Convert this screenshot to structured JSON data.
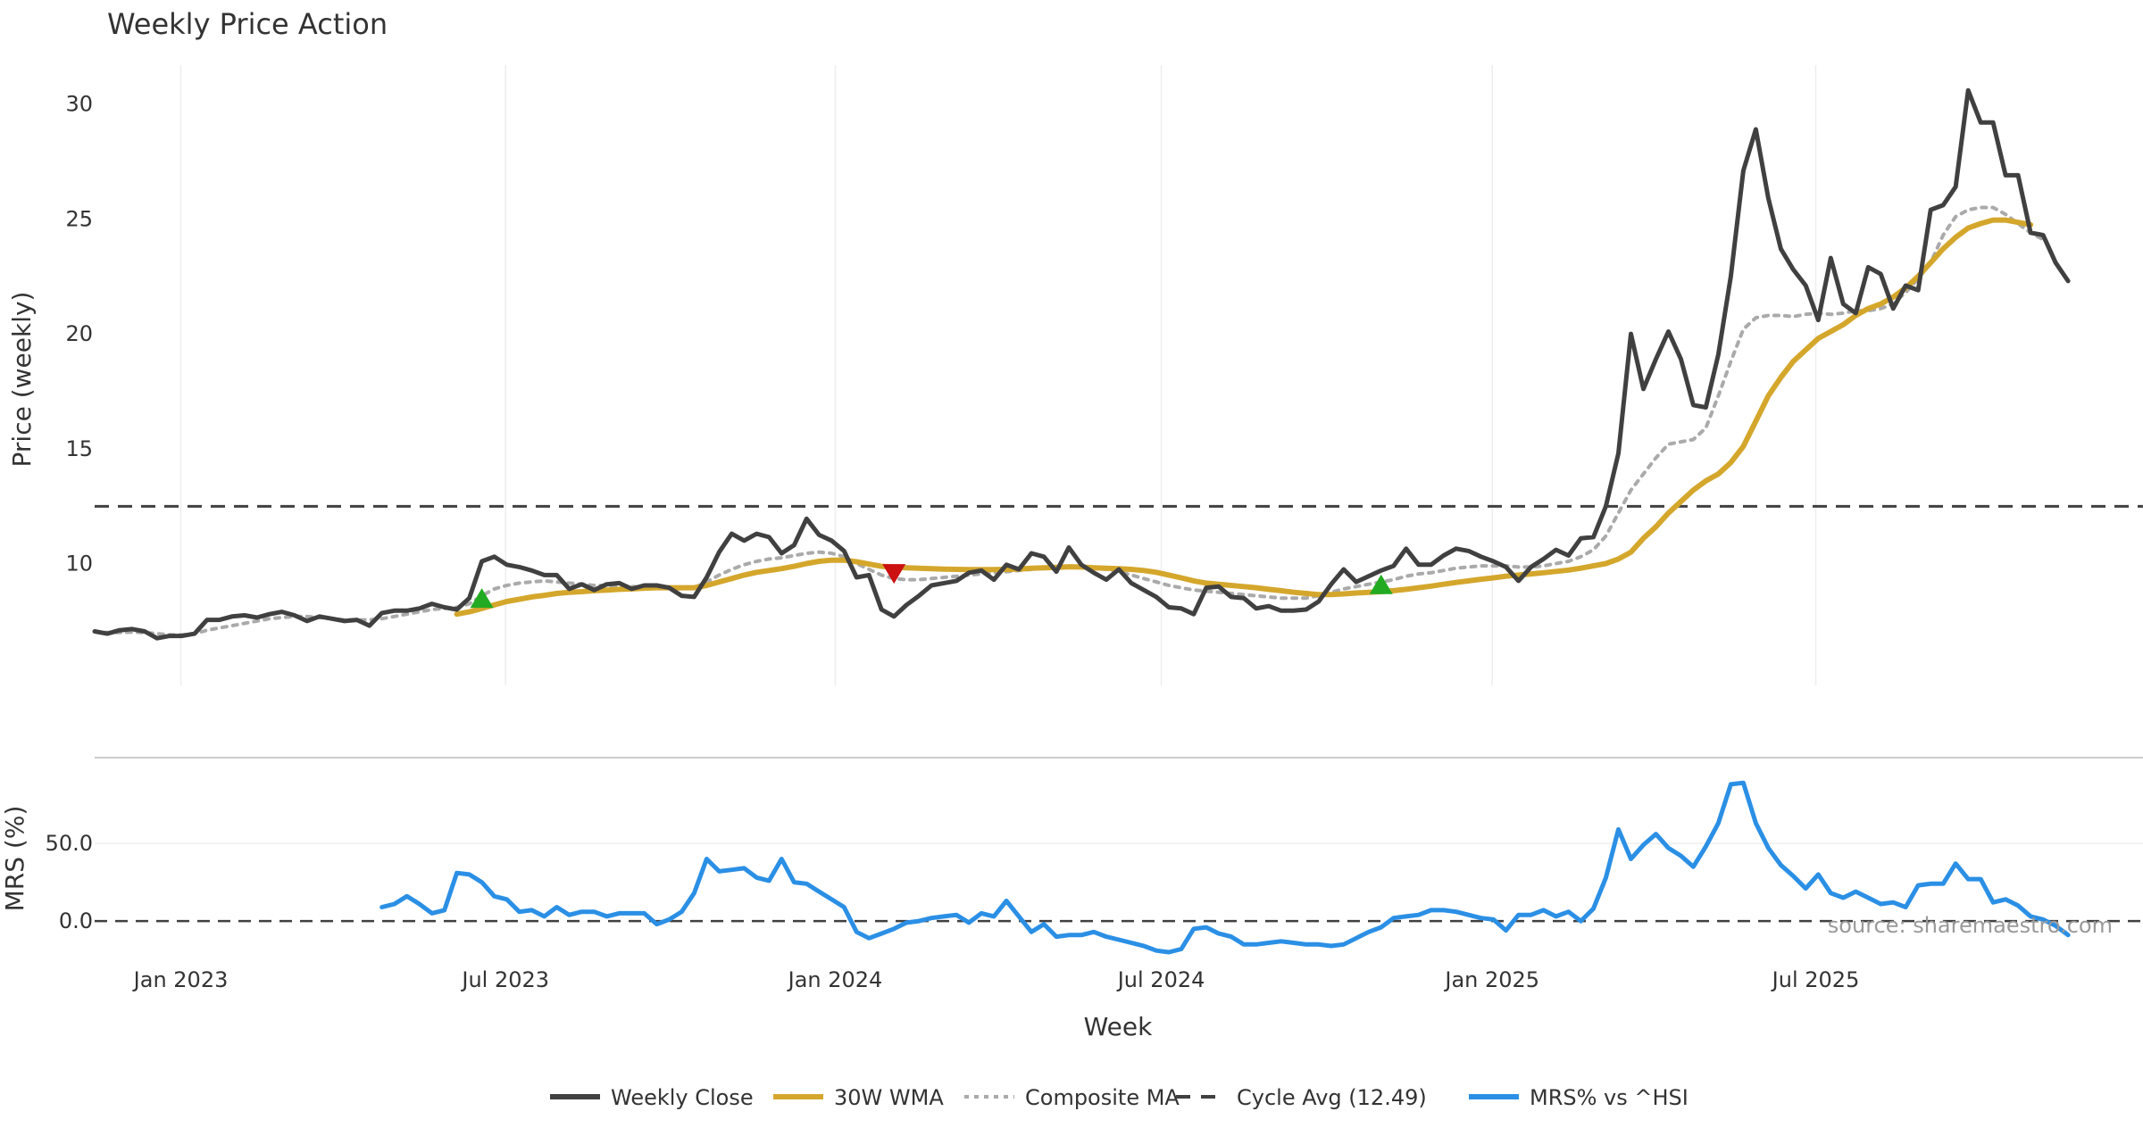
{
  "chart_data": {
    "type": "line",
    "title": "Weekly Price Action",
    "xlabel": "Week",
    "ylabel_price": "Price (weekly)",
    "ylabel_mrs": "MRS (%)",
    "source": "source: sharemaestro.com",
    "x_ticks": [
      "Jan 2023",
      "Jul 2023",
      "Jan 2024",
      "Jul 2024",
      "Jan 2025",
      "Jul 2025"
    ],
    "price_axis": {
      "ylim": [
        4.7,
        31.5
      ],
      "ticks": [
        "10",
        "15",
        "20",
        "25",
        "30"
      ]
    },
    "mrs_axis": {
      "ylim": [
        -16,
        100
      ],
      "ticks": [
        "0.0",
        "50.0"
      ]
    },
    "cycle_average": 12.49,
    "legend": [
      {
        "label": "Weekly Close",
        "color": "#404040",
        "style": "solid"
      },
      {
        "label": "30W WMA",
        "color": "#D4A72C",
        "style": "solid"
      },
      {
        "label": "Composite MA",
        "color": "#AAAAAA",
        "style": "dotted"
      },
      {
        "label": "Cycle Avg (12.49)",
        "color": "#404040",
        "style": "dashed"
      },
      {
        "label": "MRS% vs ^HSI",
        "color": "#2B8FE5",
        "style": "solid"
      }
    ],
    "series": [
      {
        "name": "Weekly Close",
        "color": "#404040",
        "start": 0,
        "values": [
          7.05,
          6.95,
          7.1,
          7.15,
          7.05,
          6.75,
          6.85,
          6.85,
          6.95,
          7.55,
          7.55,
          7.7,
          7.75,
          7.65,
          7.8,
          7.9,
          7.75,
          7.5,
          7.7,
          7.6,
          7.5,
          7.55,
          7.3,
          7.85,
          7.95,
          7.95,
          8.05,
          8.25,
          8.1,
          8.0,
          8.5,
          10.1,
          10.3,
          9.95,
          9.85,
          9.7,
          9.5,
          9.5,
          8.9,
          9.1,
          8.85,
          9.1,
          9.15,
          8.9,
          9.05,
          9.05,
          8.95,
          8.6,
          8.55,
          9.4,
          10.5,
          11.3,
          11.0,
          11.3,
          11.15,
          10.45,
          10.8,
          11.95,
          11.25,
          11.0,
          10.55,
          9.4,
          9.5,
          8.0,
          7.7,
          8.2,
          8.6,
          9.05,
          9.15,
          9.25,
          9.6,
          9.7,
          9.3,
          9.95,
          9.75,
          10.45,
          10.3,
          9.65,
          10.7,
          9.95,
          9.6,
          9.3,
          9.75,
          9.15,
          8.85,
          8.55,
          8.1,
          8.05,
          7.8,
          8.95,
          9.0,
          8.55,
          8.5,
          8.05,
          8.15,
          7.95,
          7.95,
          8.0,
          8.35,
          9.1,
          9.75,
          9.2,
          9.45,
          9.7,
          9.9,
          10.65,
          9.95,
          9.95,
          10.35,
          10.65,
          10.55,
          10.3,
          10.1,
          9.85,
          9.25,
          9.85,
          10.2,
          10.6,
          10.35,
          11.1,
          11.15,
          12.5,
          14.8,
          20.0,
          17.6,
          18.9,
          20.1,
          18.9,
          16.9,
          16.8,
          19.1,
          22.5,
          27.1,
          28.9,
          25.9,
          23.7,
          22.8,
          22.1,
          20.6,
          23.3,
          21.3,
          20.9,
          22.9,
          22.6,
          21.1,
          22.1,
          21.9,
          25.4,
          25.6,
          26.4,
          30.6,
          29.2,
          29.2,
          26.9,
          26.9,
          24.4,
          24.3,
          23.1,
          22.3
        ]
      },
      {
        "name": "30W WMA",
        "color": "#D4A72C",
        "start": 29,
        "values": [
          7.8,
          7.9,
          8.05,
          8.2,
          8.35,
          8.45,
          8.55,
          8.62,
          8.7,
          8.75,
          8.78,
          8.82,
          8.85,
          8.88,
          8.9,
          8.93,
          8.95,
          8.95,
          8.95,
          8.95,
          9.05,
          9.2,
          9.35,
          9.5,
          9.62,
          9.7,
          9.78,
          9.88,
          10.0,
          10.1,
          10.15,
          10.15,
          10.08,
          9.98,
          9.88,
          9.85,
          9.82,
          9.8,
          9.78,
          9.76,
          9.75,
          9.74,
          9.74,
          9.74,
          9.75,
          9.76,
          9.8,
          9.82,
          9.84,
          9.86,
          9.85,
          9.82,
          9.8,
          9.78,
          9.75,
          9.7,
          9.62,
          9.5,
          9.38,
          9.25,
          9.15,
          9.1,
          9.05,
          9.0,
          8.95,
          8.88,
          8.82,
          8.75,
          8.7,
          8.65,
          8.65,
          8.68,
          8.72,
          8.75,
          8.78,
          8.82,
          8.88,
          8.95,
          9.02,
          9.1,
          9.18,
          9.25,
          9.32,
          9.38,
          9.45,
          9.5,
          9.55,
          9.6,
          9.66,
          9.72,
          9.8,
          9.9,
          10.0,
          10.2,
          10.5,
          11.1,
          11.6,
          12.2,
          12.7,
          13.2,
          13.6,
          13.9,
          14.4,
          15.1,
          16.2,
          17.3,
          18.1,
          18.8,
          19.3,
          19.8,
          20.1,
          20.4,
          20.8,
          21.1,
          21.3,
          21.6,
          22.0,
          22.5,
          23.1,
          23.7,
          24.2,
          24.6,
          24.8,
          24.95,
          24.95,
          24.85,
          24.75
        ]
      },
      {
        "name": "Composite MA",
        "color": "#AAAAAA",
        "start": 0,
        "values": [
          7.05,
          7.0,
          7.0,
          7.02,
          7.0,
          6.95,
          6.9,
          6.9,
          6.95,
          7.1,
          7.2,
          7.3,
          7.4,
          7.5,
          7.6,
          7.65,
          7.7,
          7.7,
          7.65,
          7.6,
          7.55,
          7.55,
          7.55,
          7.6,
          7.7,
          7.8,
          7.9,
          8.0,
          8.05,
          8.1,
          8.25,
          8.6,
          8.9,
          9.05,
          9.15,
          9.2,
          9.25,
          9.2,
          9.15,
          9.1,
          9.05,
          9.05,
          9.0,
          9.0,
          8.98,
          8.98,
          8.95,
          8.9,
          8.95,
          9.2,
          9.5,
          9.75,
          9.95,
          10.1,
          10.2,
          10.25,
          10.35,
          10.45,
          10.5,
          10.45,
          10.3,
          10.0,
          9.75,
          9.5,
          9.35,
          9.3,
          9.3,
          9.35,
          9.4,
          9.45,
          9.5,
          9.55,
          9.6,
          9.65,
          9.7,
          9.75,
          9.8,
          9.8,
          9.85,
          9.85,
          9.8,
          9.75,
          9.65,
          9.5,
          9.35,
          9.2,
          9.05,
          8.95,
          8.85,
          8.8,
          8.75,
          8.7,
          8.65,
          8.6,
          8.55,
          8.5,
          8.5,
          8.5,
          8.6,
          8.75,
          8.9,
          9.0,
          9.1,
          9.2,
          9.3,
          9.45,
          9.55,
          9.6,
          9.7,
          9.8,
          9.85,
          9.9,
          9.9,
          9.9,
          9.85,
          9.85,
          9.9,
          10.0,
          10.1,
          10.3,
          10.6,
          11.2,
          12.2,
          13.2,
          13.9,
          14.6,
          15.2,
          15.3,
          15.4,
          15.9,
          17.3,
          18.8,
          20.2,
          20.7,
          20.8,
          20.8,
          20.75,
          20.85,
          20.9,
          20.85,
          20.9,
          21.0,
          21.0,
          21.1,
          21.3,
          21.8,
          22.4,
          23.1,
          24.3,
          25.1,
          25.4,
          25.5,
          25.5,
          25.2,
          24.8,
          24.4,
          24.1
        ]
      },
      {
        "name": "MRS% vs ^HSI",
        "color": "#2B8FE5",
        "start": 23,
        "values": [
          9,
          11,
          16,
          11,
          5,
          7,
          31,
          30,
          25,
          16,
          14,
          6,
          7,
          3,
          9,
          4,
          6,
          6,
          3,
          5,
          5,
          5,
          -2,
          1,
          6,
          18,
          40,
          32,
          33,
          34,
          28,
          26,
          40,
          25,
          24,
          19,
          14,
          9,
          -7,
          -11,
          -8,
          -5,
          -1,
          0,
          2,
          3,
          4,
          -1,
          5,
          3,
          13,
          3,
          -7,
          -2,
          -10,
          -9,
          -9,
          -7,
          -10,
          -12,
          -14,
          -16,
          -19,
          -20,
          -18,
          -5,
          -4,
          -8,
          -10,
          -15,
          -15,
          -14,
          -13,
          -14,
          -15,
          -15,
          -16,
          -15,
          -11,
          -7,
          -4,
          2,
          3,
          4,
          7,
          7,
          6,
          4,
          2,
          1,
          -6,
          4,
          4,
          7,
          3,
          6,
          0,
          8,
          28,
          59,
          40,
          49,
          56,
          47,
          42,
          35,
          48,
          63,
          88,
          89,
          63,
          47,
          36,
          29,
          21,
          30,
          18,
          15,
          19,
          15,
          11,
          12,
          9,
          23,
          24,
          24,
          37,
          27,
          27,
          12,
          14,
          10,
          3,
          1,
          -3,
          -9
        ]
      }
    ],
    "signals": [
      {
        "type": "buy",
        "week": 31,
        "value": 8.5
      },
      {
        "type": "sell",
        "week": 64,
        "value": 9.55
      },
      {
        "type": "buy",
        "week": 103,
        "value": 9.1
      }
    ]
  }
}
